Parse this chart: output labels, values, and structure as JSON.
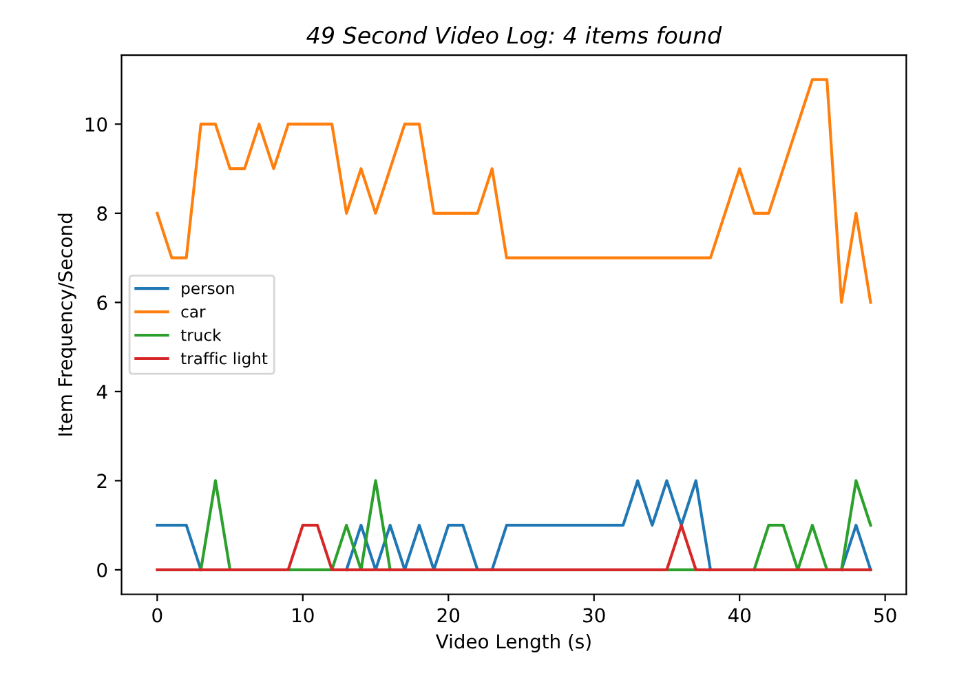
{
  "chart_data": {
    "type": "line",
    "title": "49 Second Video Log: 4 items found",
    "xlabel": "Video Length (s)",
    "ylabel": "Item Frequency/Second",
    "x": [
      0,
      1,
      2,
      3,
      4,
      5,
      6,
      7,
      8,
      9,
      10,
      11,
      12,
      13,
      14,
      15,
      16,
      17,
      18,
      19,
      20,
      21,
      22,
      23,
      24,
      25,
      26,
      27,
      28,
      29,
      30,
      31,
      32,
      33,
      34,
      35,
      36,
      37,
      38,
      39,
      40,
      41,
      42,
      43,
      44,
      45,
      46,
      47,
      48,
      49
    ],
    "series": [
      {
        "name": "person",
        "color": "#1f77b4",
        "values": [
          1,
          1,
          1,
          0,
          null,
          null,
          null,
          null,
          null,
          null,
          null,
          null,
          null,
          0,
          1,
          0,
          1,
          0,
          1,
          0,
          1,
          1,
          0,
          0,
          1,
          1,
          1,
          1,
          1,
          1,
          1,
          1,
          1,
          2,
          1,
          2,
          1,
          2,
          0,
          null,
          null,
          null,
          null,
          null,
          null,
          null,
          null,
          0,
          1,
          0
        ]
      },
      {
        "name": "car",
        "color": "#ff7f0e",
        "values": [
          8,
          7,
          7,
          10,
          10,
          9,
          9,
          10,
          9,
          10,
          10,
          10,
          10,
          8,
          9,
          8,
          9,
          10,
          10,
          8,
          8,
          8,
          8,
          9,
          7,
          7,
          7,
          7,
          7,
          7,
          7,
          7,
          7,
          7,
          7,
          7,
          7,
          7,
          7,
          8,
          9,
          8,
          8,
          9,
          10,
          11,
          11,
          6,
          8,
          6
        ]
      },
      {
        "name": "truck",
        "color": "#2ca02c",
        "values": [
          null,
          null,
          null,
          0,
          2,
          0,
          null,
          null,
          null,
          0,
          0,
          0,
          0,
          1,
          0,
          2,
          0,
          null,
          null,
          null,
          null,
          null,
          null,
          null,
          null,
          null,
          null,
          null,
          null,
          null,
          null,
          null,
          null,
          null,
          null,
          0,
          0,
          0,
          null,
          null,
          null,
          0,
          1,
          1,
          0,
          1,
          0,
          0,
          2,
          1
        ]
      },
      {
        "name": "traffic light",
        "color": "#d62728",
        "values": [
          0,
          0,
          0,
          0,
          0,
          0,
          0,
          0,
          0,
          0,
          1,
          1,
          0,
          0,
          0,
          0,
          0,
          0,
          0,
          0,
          0,
          0,
          0,
          0,
          0,
          0,
          0,
          0,
          0,
          0,
          0,
          0,
          0,
          0,
          0,
          0,
          1,
          0,
          0,
          0,
          0,
          0,
          0,
          0,
          0,
          0,
          0,
          0,
          0,
          0
        ]
      }
    ],
    "xlim": [
      -2.45,
      51.45
    ],
    "ylim": [
      -0.55,
      11.55
    ],
    "xticks": [
      0,
      10,
      20,
      30,
      40,
      50
    ],
    "yticks": [
      0,
      2,
      4,
      6,
      8,
      10
    ],
    "legend": "left",
    "grid": false,
    "marker": "none",
    "line_style": "solid"
  }
}
